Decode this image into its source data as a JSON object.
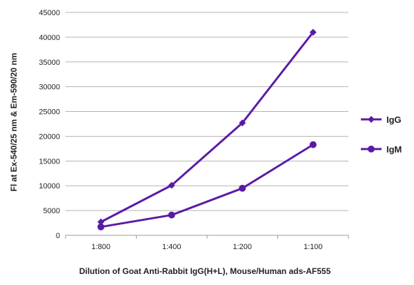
{
  "chart_data": {
    "type": "line",
    "categories": [
      "1:800",
      "1:400",
      "1:200",
      "1:100"
    ],
    "series": [
      {
        "name": "IgG",
        "values": [
          2700,
          10100,
          22700,
          41000
        ],
        "marker": "diamond",
        "color": "#5b1aa6"
      },
      {
        "name": "IgM",
        "values": [
          1700,
          4100,
          9500,
          18300
        ],
        "marker": "circle",
        "color": "#5b1aa6"
      }
    ],
    "title": "",
    "xlabel": "Dilution of Goat Anti-Rabbit IgG(H+L), Mouse/Human ads-AF555",
    "ylabel": "Fl at Ex-540/25 nm & Em-590/20 nm",
    "ylim": [
      0,
      45000
    ],
    "yticks": [
      0,
      5000,
      10000,
      15000,
      20000,
      25000,
      30000,
      35000,
      40000,
      45000
    ],
    "grid": "horizontal",
    "legend": "right"
  }
}
